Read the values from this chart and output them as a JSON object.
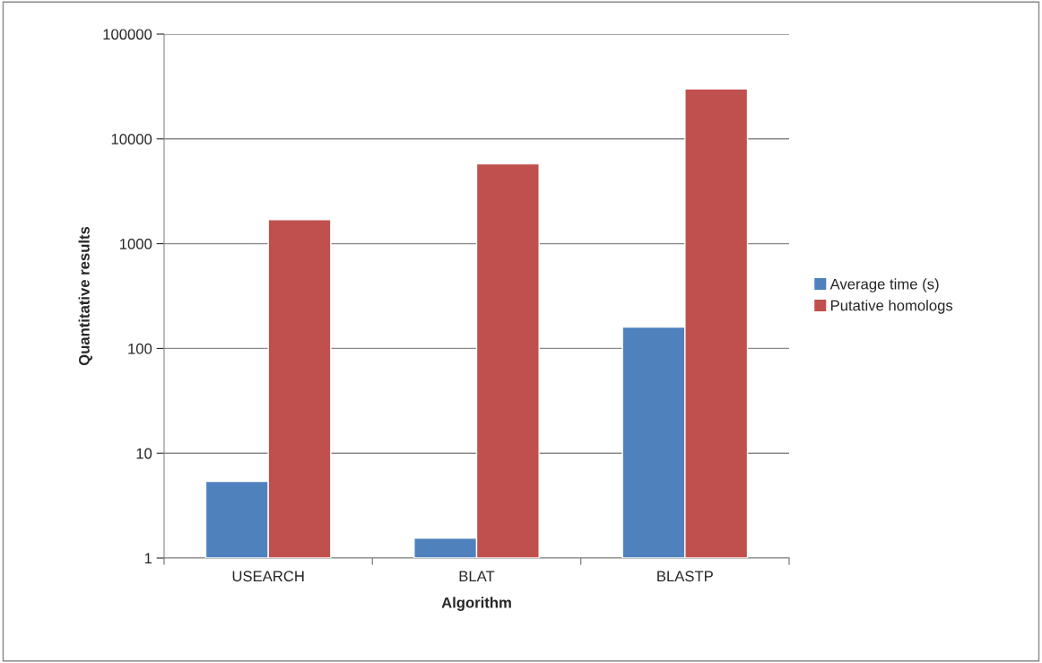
{
  "chart_data": {
    "type": "bar",
    "xlabel": "Algorithm",
    "ylabel": "Quantitative results",
    "categories": [
      "USEARCH",
      "BLAT",
      "BLASTP"
    ],
    "series": [
      {
        "name": "Average time (s)",
        "color": "#4f81bd",
        "values": [
          5.4,
          1.55,
          160
        ]
      },
      {
        "name": "Putative homologs",
        "color": "#c0504d",
        "values": [
          1700,
          5800,
          30000
        ]
      }
    ],
    "log": true,
    "ylim": [
      1,
      100000
    ],
    "yticks": [
      1,
      10,
      100,
      1000,
      10000,
      100000
    ],
    "grid": "y",
    "legend": "right"
  }
}
